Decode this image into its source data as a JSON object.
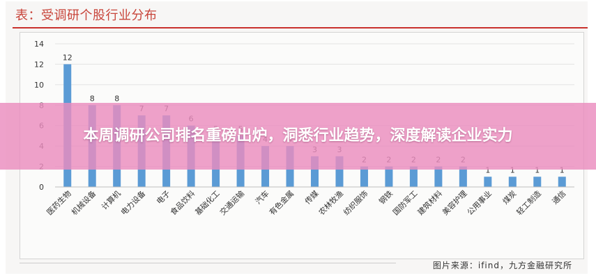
{
  "header": {
    "title": "表：受调研个股行业分布"
  },
  "source_text": "图片来源：ifind，九方金融研究所",
  "overlay": {
    "headline": "本周调研公司排名重磅出炉，洞悉行业趋势，深度解读企业实力"
  },
  "colors": {
    "bar": "#5b9bd5",
    "title": "#c8453b",
    "rule": "#c9302c",
    "overlay": "#ea8cbe"
  },
  "chart_data": {
    "type": "bar",
    "categories": [
      "医药生物",
      "机械设备",
      "计算机",
      "电力设备",
      "电子",
      "食品饮料",
      "基础化工",
      "交通运输",
      "汽车",
      "有色金属",
      "传媒",
      "农林牧渔",
      "纺织服饰",
      "钢铁",
      "国防军工",
      "建筑材料",
      "美容护理",
      "公用事业",
      "煤炭",
      "轻工制造",
      "通信"
    ],
    "values": [
      12,
      8,
      8,
      7,
      7,
      6,
      5,
      5,
      4,
      4,
      3,
      3,
      2,
      2,
      2,
      2,
      2,
      1,
      1,
      1,
      1
    ],
    "ylim": [
      0,
      14
    ],
    "yticks": [
      0,
      2,
      4,
      6,
      8,
      10,
      12,
      14
    ],
    "grid": true,
    "legend": "none"
  }
}
